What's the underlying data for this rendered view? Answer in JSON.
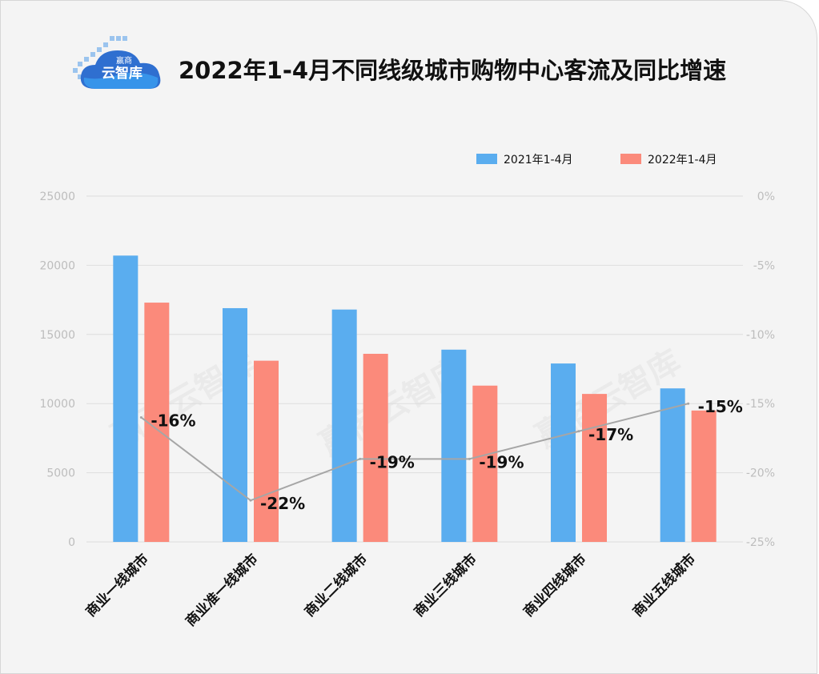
{
  "page": {
    "title": "2022年1-4月不同线级城市购物中心客流及同比增速",
    "logo": {
      "brand": "云智库",
      "small": "赢商"
    },
    "watermark": "赢商云智库"
  },
  "colors": {
    "series_2021": "#5aadef",
    "series_2022": "#fb8a7b",
    "line": "#a6a6a6",
    "grid": "#dddddd",
    "background": "#f4f4f4"
  },
  "chart_data": {
    "type": "bar",
    "title": "2022年1-4月不同线级城市购物中心客流及同比增速",
    "categories": [
      "商业一线城市",
      "商业准一线城市",
      "商业二线城市",
      "商业三线城市",
      "商业四线城市",
      "商业五线城市"
    ],
    "series": [
      {
        "name": "2021年1-4月",
        "values": [
          20700,
          16900,
          16800,
          13900,
          12900,
          11100
        ]
      },
      {
        "name": "2022年1-4月",
        "values": [
          17300,
          13100,
          13600,
          11300,
          10700,
          9500
        ]
      }
    ],
    "line_series": {
      "values": [
        -16,
        -22,
        -19,
        -19,
        -17,
        -15
      ],
      "labels": [
        "-16%",
        "-22%",
        "-19%",
        "-19%",
        "-17%",
        "-15%"
      ],
      "axis": "right"
    },
    "y_left": {
      "range": [
        0,
        25000
      ],
      "ticks": [
        "0",
        "5000",
        "10000",
        "15000",
        "20000",
        "25000"
      ]
    },
    "y_right": {
      "range": [
        -25,
        0
      ],
      "ticks": [
        "-25%",
        "-20%",
        "-15%",
        "-10%",
        "-5%",
        "0%"
      ]
    },
    "legend": {
      "placement": "top-right"
    },
    "grid": true
  }
}
